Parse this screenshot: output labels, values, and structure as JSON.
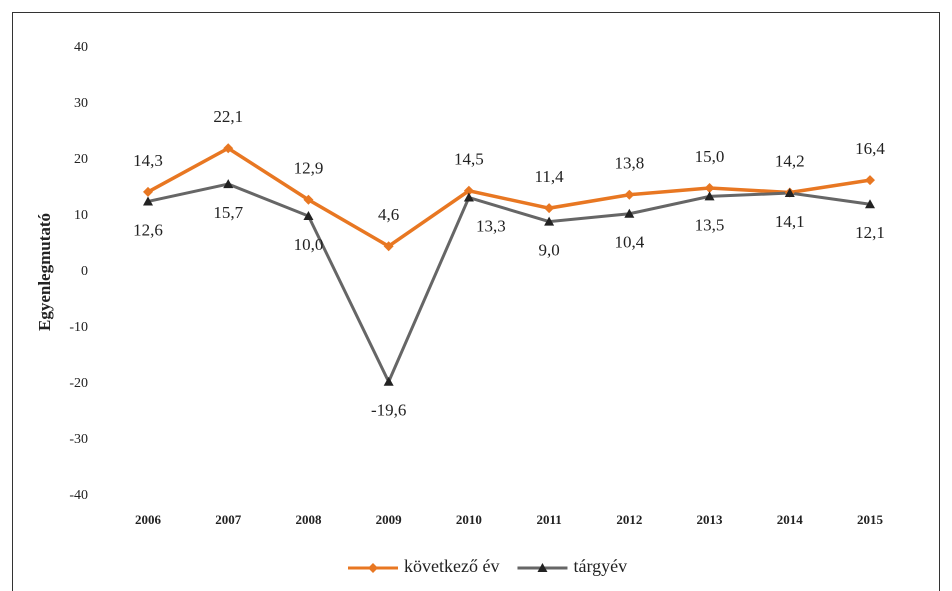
{
  "chart_data": {
    "type": "line",
    "ylabel": "Egyenlegmutató",
    "categories": [
      "2006",
      "2007",
      "2008",
      "2009",
      "2010",
      "2011",
      "2012",
      "2013",
      "2014",
      "2015"
    ],
    "series": [
      {
        "name": "következő év",
        "color": "#e87722",
        "marker": "diamond",
        "values": [
          14.3,
          22.1,
          12.9,
          4.6,
          14.5,
          11.4,
          13.8,
          15.0,
          14.2,
          16.4
        ],
        "value_labels": [
          "14,3",
          "22,1",
          "12,9",
          "4,6",
          "14,5",
          "11,4",
          "13,8",
          "15,0",
          "14,2",
          "16,4"
        ]
      },
      {
        "name": "tárgyév",
        "color": "#666666",
        "marker": "triangle",
        "values": [
          12.6,
          15.7,
          10.0,
          -19.6,
          13.3,
          9.0,
          10.4,
          13.5,
          14.1,
          12.1
        ],
        "value_labels": [
          "12,6",
          "15,7",
          "10,0",
          "-19,6",
          "13,3",
          "9,0",
          "10,4",
          "13,5",
          "14,1",
          "12,1"
        ]
      }
    ],
    "ylim": [
      -40,
      40
    ],
    "yticks": [
      -40,
      -30,
      -20,
      -10,
      0,
      10,
      20,
      30,
      40
    ],
    "grid": false,
    "legend": "bottom"
  }
}
